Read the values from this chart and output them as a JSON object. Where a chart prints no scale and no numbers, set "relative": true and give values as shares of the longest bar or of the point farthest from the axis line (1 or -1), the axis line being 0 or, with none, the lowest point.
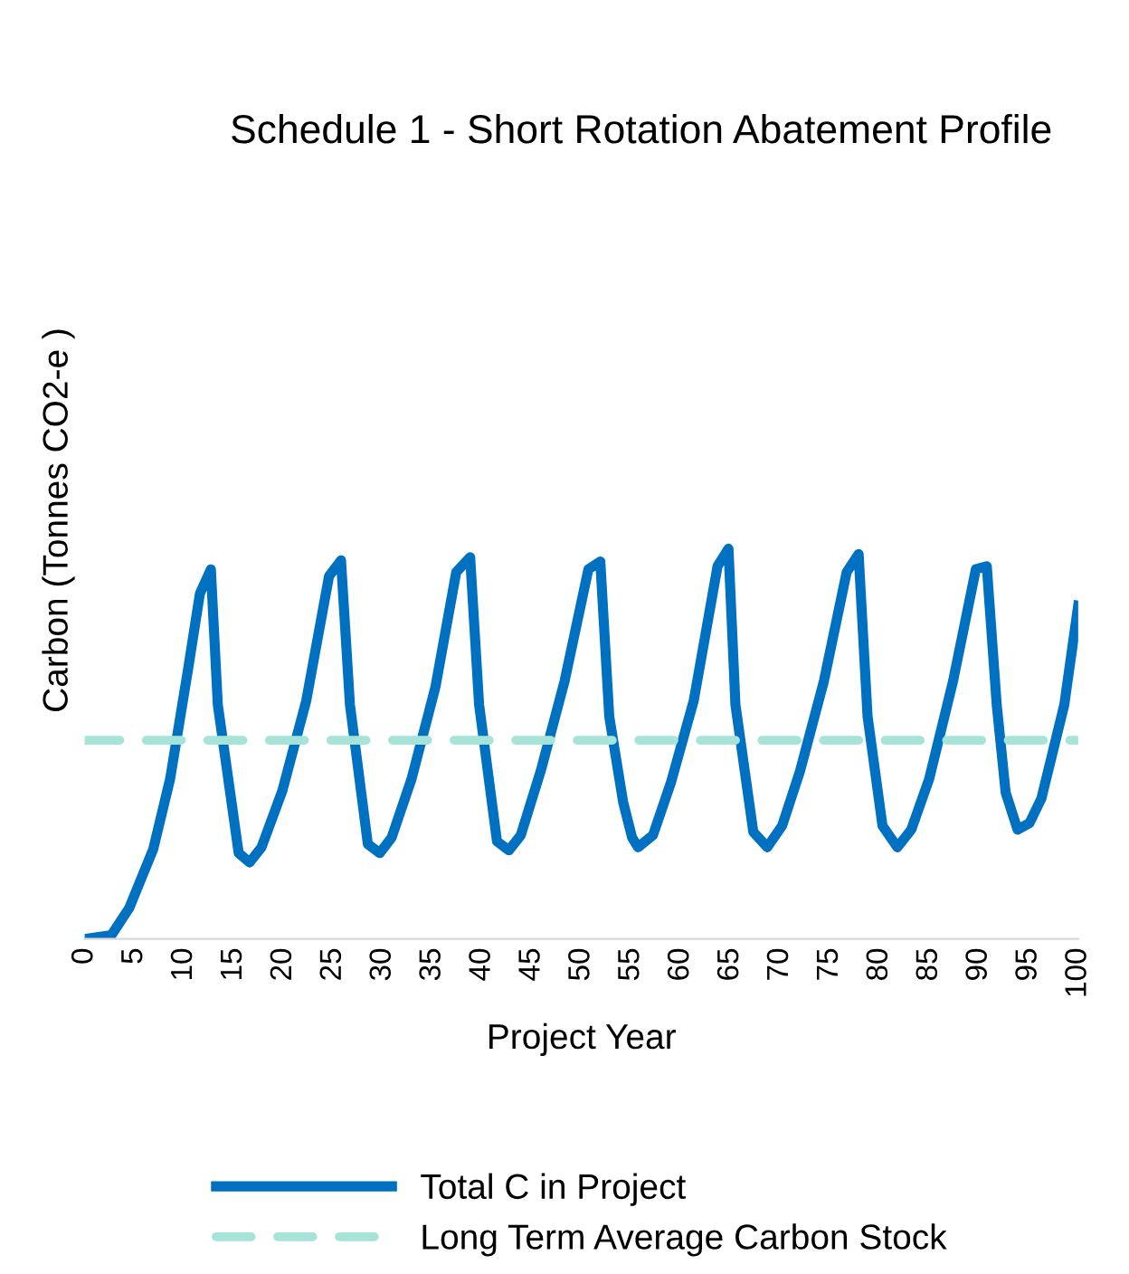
{
  "chart_data": {
    "type": "line",
    "title": "Schedule 1 - Short Rotation Abatement Profile",
    "xlabel": "Project Year",
    "ylabel": "Carbon (Tonnes CO2-e )",
    "relative": true,
    "xlim": [
      0,
      100
    ],
    "xticks": [
      0,
      5,
      10,
      15,
      20,
      25,
      30,
      35,
      40,
      45,
      50,
      55,
      60,
      65,
      70,
      75,
      80,
      85,
      90,
      95,
      100
    ],
    "grid": false,
    "legend": "bottom",
    "series": [
      {
        "name": "Total C in Project",
        "color": "#0070c0",
        "line_style": "solid",
        "x": [
          0,
          2.7,
          4.5,
          6.9,
          8.6,
          10.4,
          11.6,
          12.7,
          13.4,
          15.5,
          16.6,
          17.8,
          19.9,
          22.3,
          24.6,
          25.8,
          26.7,
          28.5,
          29.7,
          30.9,
          32.9,
          35.3,
          37.4,
          38.8,
          39.7,
          41.5,
          42.7,
          43.9,
          45.9,
          48.3,
          50.7,
          51.9,
          52.8,
          54.2,
          55.1,
          55.7,
          57.2,
          59.0,
          61.3,
          63.7,
          64.8,
          65.5,
          67.3,
          68.7,
          70.2,
          72.0,
          74.4,
          76.7,
          77.9,
          78.8,
          80.3,
          81.8,
          83.2,
          85.0,
          87.4,
          89.7,
          90.8,
          91.8,
          92.7,
          93.9,
          95.1,
          96.3,
          98.6,
          100
        ],
        "values": [
          0,
          0.01,
          0.08,
          0.23,
          0.41,
          0.69,
          0.885,
          0.947,
          0.6,
          0.22,
          0.196,
          0.235,
          0.38,
          0.61,
          0.93,
          0.97,
          0.6,
          0.243,
          0.22,
          0.26,
          0.41,
          0.645,
          0.94,
          0.978,
          0.6,
          0.25,
          0.227,
          0.266,
          0.43,
          0.66,
          0.947,
          0.967,
          0.57,
          0.35,
          0.26,
          0.235,
          0.266,
          0.4,
          0.61,
          0.955,
          1.0,
          0.6,
          0.274,
          0.235,
          0.29,
          0.43,
          0.66,
          0.94,
          0.986,
          0.57,
          0.29,
          0.235,
          0.28,
          0.41,
          0.66,
          0.947,
          0.955,
          0.6,
          0.375,
          0.28,
          0.297,
          0.36,
          0.6,
          0.854
        ]
      },
      {
        "name": "Long Term Average Carbon Stock",
        "color": "#a6e3d9",
        "line_style": "dashed",
        "x": [
          0,
          100
        ],
        "values": [
          0.509,
          0.509
        ]
      }
    ]
  }
}
